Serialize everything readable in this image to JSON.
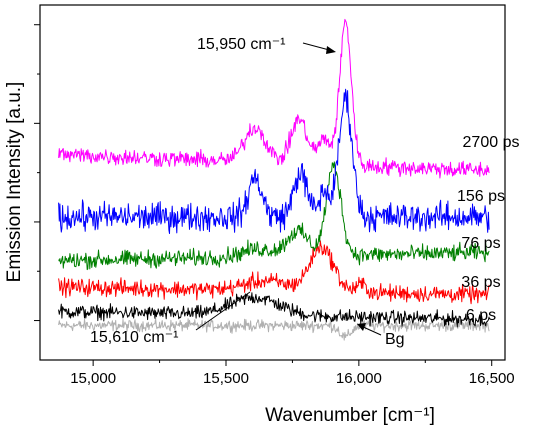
{
  "chart_data": {
    "type": "line",
    "title": "",
    "xlabel": "Wavenumber [cm⁻¹]",
    "ylabel": "Emission Intensity [a.u.]",
    "xlim": [
      14800,
      16550
    ],
    "ylim": [
      -0.4,
      3.2
    ],
    "x_ticks": [
      15000,
      15500,
      16000,
      16500
    ],
    "x_tick_labels": [
      "15,000",
      "15,500",
      "16,000",
      "16,500"
    ],
    "y_tick_labels": [],
    "grid": false,
    "legend": "none",
    "series": [
      {
        "name": "2700 ps",
        "color": "#ff00ff",
        "offset": 1.6,
        "noise": 0.06,
        "baseline_slope": -0.1,
        "peaks": [
          {
            "x": 15610,
            "amp": 0.35,
            "width": 40
          },
          {
            "x": 15775,
            "amp": 0.45,
            "width": 30
          },
          {
            "x": 15870,
            "amp": 0.25,
            "width": 25
          },
          {
            "x": 15950,
            "amp": 1.45,
            "width": 22
          }
        ]
      },
      {
        "name": "156 ps",
        "color": "#0000ff",
        "offset": 1.05,
        "noise": 0.1,
        "baseline_slope": 0.0,
        "peaks": [
          {
            "x": 15610,
            "amp": 0.4,
            "width": 25
          },
          {
            "x": 15780,
            "amp": 0.45,
            "width": 25
          },
          {
            "x": 15870,
            "amp": 0.25,
            "width": 20
          },
          {
            "x": 15950,
            "amp": 1.2,
            "width": 25
          }
        ]
      },
      {
        "name": "76 ps",
        "color": "#008000",
        "offset": 0.65,
        "noise": 0.06,
        "baseline_slope": 0.05,
        "peaks": [
          {
            "x": 15620,
            "amp": 0.08,
            "width": 60
          },
          {
            "x": 15770,
            "amp": 0.25,
            "width": 40
          },
          {
            "x": 15905,
            "amp": 0.9,
            "width": 28
          }
        ]
      },
      {
        "name": "36 ps",
        "color": "#ff0000",
        "offset": 0.3,
        "noise": 0.06,
        "baseline_slope": -0.05,
        "peaks": [
          {
            "x": 15650,
            "amp": 0.1,
            "width": 80
          },
          {
            "x": 15860,
            "amp": 0.45,
            "width": 45
          },
          {
            "x": 16010,
            "amp": 0.08,
            "width": 20
          }
        ]
      },
      {
        "name": "6 ps",
        "color": "#000000",
        "offset": 0.05,
        "noise": 0.05,
        "baseline_slope": -0.05,
        "peaks": [
          {
            "x": 15610,
            "amp": 0.18,
            "width": 90
          }
        ]
      },
      {
        "name": "Bg",
        "color": "#b0b0b0",
        "offset": -0.05,
        "noise": 0.04,
        "baseline_slope": 0.0,
        "peaks": [
          {
            "x": 15950,
            "amp": -0.12,
            "width": 20
          }
        ]
      }
    ],
    "annotations": [
      {
        "text": "15,950 cm⁻¹",
        "x": 15950
      },
      {
        "text": "15,610 cm⁻¹",
        "x": 15610
      },
      {
        "text": "Bg",
        "x": 15990
      }
    ]
  }
}
